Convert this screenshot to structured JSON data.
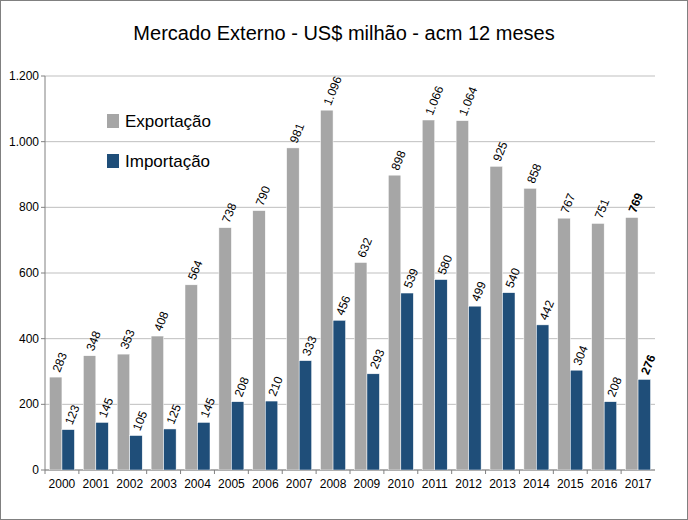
{
  "chart_data": {
    "type": "bar",
    "title": "Mercado Externo - US$ milhão - acm 12 meses",
    "categories": [
      "2000",
      "2001",
      "2002",
      "2003",
      "2004",
      "2005",
      "2006",
      "2007",
      "2008",
      "2009",
      "2010",
      "2011",
      "2012",
      "2013",
      "2014",
      "2015",
      "2016",
      "2017"
    ],
    "series": [
      {
        "name": "Exportação",
        "color": "#a6a6a6",
        "values": [
          283,
          348,
          353,
          408,
          564,
          738,
          790,
          981,
          1096,
          632,
          898,
          1066,
          1064,
          925,
          858,
          767,
          751,
          769
        ],
        "value_labels": [
          "283",
          "348",
          "353",
          "408",
          "564",
          "738",
          "790",
          "981",
          "1.096",
          "632",
          "898",
          "1.066",
          "1.064",
          "925",
          "858",
          "767",
          "751",
          "769"
        ]
      },
      {
        "name": "Importação",
        "color": "#1f4e79",
        "values": [
          123,
          145,
          105,
          125,
          145,
          208,
          210,
          333,
          456,
          293,
          539,
          580,
          499,
          540,
          442,
          304,
          208,
          276
        ]
      }
    ],
    "ylim": [
      0,
      1200
    ],
    "yticks": [
      0,
      200,
      400,
      600,
      800,
      {
        "value": 1000,
        "label": "1.000"
      },
      {
        "value": 1200,
        "label": "1.200"
      }
    ],
    "grid": true,
    "legend": "upper left",
    "data_labels": true
  }
}
